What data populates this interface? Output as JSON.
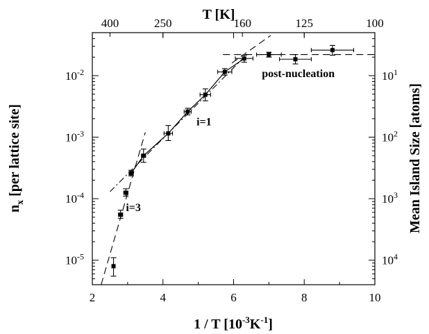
{
  "chart_data": {
    "type": "scatter",
    "xlabel": "1 / T [10",
    "xlabel_sup": "-3",
    "xlabel_mid": "K",
    "xlabel_sup2": "-1",
    "xlabel_end": "]",
    "top_label": "T [K]",
    "ylabel": "n",
    "ylabel_sub": "x",
    "ylabel_rest": " [per lattice site]",
    "y2label": "Mean Island Size [atoms]",
    "xlim": [
      2,
      10
    ],
    "ylim": [
      4e-06,
      0.05
    ],
    "yscale": "log",
    "x_ticks": [
      2,
      4,
      6,
      8,
      10
    ],
    "top_ticks": [
      {
        "label": "400",
        "x": 2.5
      },
      {
        "label": "250",
        "x": 4.0
      },
      {
        "label": "160",
        "x": 6.25
      },
      {
        "label": "125",
        "x": 8.0
      },
      {
        "label": "100",
        "x": 10.0
      }
    ],
    "y_ticks": [
      {
        "base": "10",
        "exp": "-5",
        "value": 1e-05
      },
      {
        "base": "10",
        "exp": "-4",
        "value": 0.0001
      },
      {
        "base": "10",
        "exp": "-3",
        "value": 0.001
      },
      {
        "base": "10",
        "exp": "-2",
        "value": 0.01
      }
    ],
    "y2_ticks": [
      {
        "base": "10",
        "exp": "4",
        "value": 1e-05
      },
      {
        "base": "10",
        "exp": "3",
        "value": 0.0001
      },
      {
        "base": "10",
        "exp": "2",
        "value": 0.001
      },
      {
        "base": "10",
        "exp": "1",
        "value": 0.01
      }
    ],
    "points": [
      {
        "x": 2.6,
        "y": 8e-06,
        "ylo": 5.5e-06,
        "yhi": 1.1e-05,
        "xerr": 0
      },
      {
        "x": 2.8,
        "y": 5.5e-05,
        "ylo": 4.8e-05,
        "yhi": 6.5e-05,
        "xerr": 0.06
      },
      {
        "x": 2.95,
        "y": 0.000125,
        "ylo": 0.00011,
        "yhi": 0.000145,
        "xerr": 0.06
      },
      {
        "x": 3.1,
        "y": 0.00026,
        "ylo": 0.000235,
        "yhi": 0.00029,
        "xerr": 0.06
      },
      {
        "x": 3.45,
        "y": 0.0005,
        "ylo": 0.00039,
        "yhi": 0.00064,
        "xerr": 0.06
      },
      {
        "x": 4.15,
        "y": 0.00115,
        "ylo": 0.00088,
        "yhi": 0.00155,
        "xerr": 0.12
      },
      {
        "x": 4.7,
        "y": 0.0026,
        "ylo": 0.0023,
        "yhi": 0.00295,
        "xerr": 0.1
      },
      {
        "x": 5.2,
        "y": 0.0049,
        "ylo": 0.0039,
        "yhi": 0.0061,
        "xerr": 0.15
      },
      {
        "x": 5.75,
        "y": 0.0115,
        "ylo": 0.0102,
        "yhi": 0.013,
        "xerr": 0.2
      },
      {
        "x": 6.3,
        "y": 0.019,
        "ylo": 0.0165,
        "yhi": 0.0215,
        "xerr": 0.25
      },
      {
        "x": 7.0,
        "y": 0.022,
        "ylo": 0.02,
        "yhi": 0.024,
        "xerr": 0.35
      },
      {
        "x": 7.75,
        "y": 0.0185,
        "ylo": 0.0155,
        "yhi": 0.022,
        "xerr": 0.45
      },
      {
        "x": 8.8,
        "y": 0.026,
        "ylo": 0.0215,
        "yhi": 0.031,
        "xerr": 0.6
      }
    ],
    "fit_lines": [
      {
        "x": [
          2.5,
          6.3
        ],
        "y": [
          0.00013,
          0.02
        ],
        "style": "dashdot"
      },
      {
        "x": [
          5.95,
          7.05
        ],
        "y": [
          0.016,
          0.045
        ],
        "style": "dashed"
      },
      {
        "x": [
          2.25,
          3.5
        ],
        "y": [
          4e-06,
          0.0012
        ],
        "style": "dashed"
      },
      {
        "x": [
          5.7,
          10.0
        ],
        "y": [
          0.022,
          0.022
        ],
        "style": "dashed"
      }
    ],
    "annotations": [
      {
        "text": "post-nucleation",
        "x": 6.8,
        "y": 0.0095
      },
      {
        "text": "i=1",
        "x": 4.95,
        "y": 0.00155
      },
      {
        "text": "i=3",
        "x": 2.95,
        "y": 6.3e-05
      }
    ]
  }
}
